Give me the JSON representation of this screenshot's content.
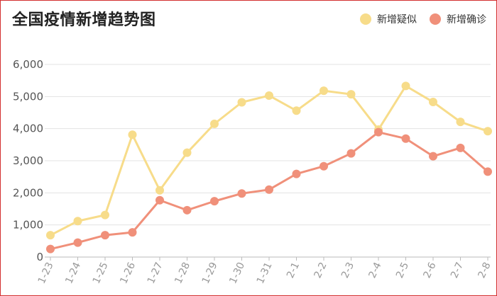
{
  "chart_data": {
    "type": "line",
    "title": "全国疫情新增趋势图",
    "categories": [
      "1-23",
      "1-24",
      "1-25",
      "1-26",
      "1-27",
      "1-28",
      "1-29",
      "1-30",
      "1-31",
      "2-1",
      "2-2",
      "2-3",
      "2-4",
      "2-5",
      "2-6",
      "2-7",
      "2-8"
    ],
    "series": [
      {
        "name": "新增疑似",
        "color": "#f7dc8a",
        "values": [
          680,
          1120,
          1310,
          3810,
          2080,
          3250,
          4150,
          4820,
          5030,
          4560,
          5180,
          5070,
          3970,
          5330,
          4830,
          4210,
          3920
        ]
      },
      {
        "name": "新增确诊",
        "color": "#f0907a",
        "values": [
          250,
          450,
          680,
          770,
          1770,
          1460,
          1740,
          1980,
          2100,
          2590,
          2830,
          3230,
          3890,
          3690,
          3140,
          3400,
          2660
        ]
      }
    ],
    "yticks": [
      "0",
      "1,000",
      "2,000",
      "3,000",
      "4,000",
      "5,000",
      "6,000"
    ],
    "ylim": [
      0,
      6000
    ],
    "grid": true,
    "legend_position": "top-right"
  }
}
